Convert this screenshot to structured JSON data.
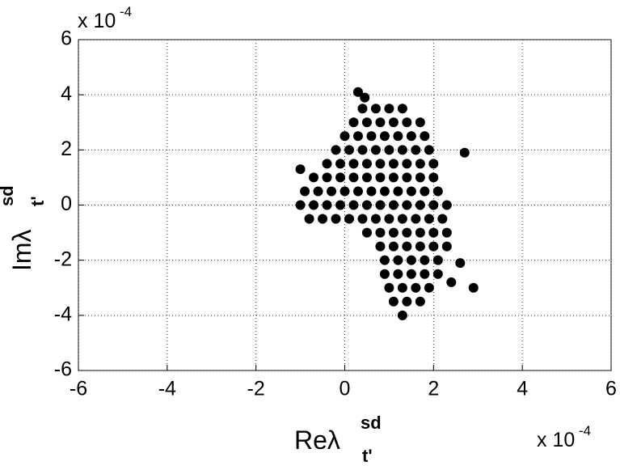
{
  "chart_data": {
    "type": "scatter",
    "xlabel": "Reλ",
    "xlabel_sub": "t'",
    "xlabel_sup": "sd",
    "ylabel": "Imλ",
    "ylabel_sub": "t'",
    "ylabel_sup": "sd",
    "x_multiplier": "x 10",
    "x_multiplier_exp": "-4",
    "y_multiplier": "x 10",
    "y_multiplier_exp": "-4",
    "xlim": [
      -6,
      6
    ],
    "ylim": [
      -6,
      6
    ],
    "xticks": [
      -6,
      -4,
      -2,
      0,
      2,
      4,
      6
    ],
    "yticks": [
      -6,
      -4,
      -2,
      0,
      2,
      4,
      6
    ],
    "grid": true,
    "series": [
      {
        "color": "#000000",
        "x": [
          0.3,
          0.45,
          0.4,
          0.7,
          1.0,
          1.3,
          0.2,
          0.5,
          0.8,
          1.1,
          1.4,
          1.7,
          0.0,
          0.3,
          0.6,
          0.9,
          1.2,
          1.5,
          1.8,
          -0.2,
          0.1,
          0.4,
          0.7,
          1.0,
          1.3,
          1.6,
          1.9,
          -0.4,
          -0.1,
          0.2,
          0.5,
          0.8,
          1.1,
          1.4,
          1.7,
          2.0,
          -0.7,
          -0.4,
          -0.1,
          0.2,
          0.5,
          0.8,
          1.1,
          1.4,
          1.7,
          2.0,
          -0.9,
          -0.6,
          -0.3,
          0.0,
          0.3,
          0.6,
          0.9,
          1.2,
          1.5,
          1.8,
          2.1,
          -1.0,
          -0.7,
          -0.4,
          -0.1,
          0.2,
          0.5,
          0.8,
          1.1,
          1.4,
          1.7,
          2.0,
          2.3,
          -0.8,
          -0.5,
          -0.2,
          0.1,
          0.4,
          0.7,
          1.0,
          1.3,
          1.6,
          1.9,
          2.2,
          0.5,
          0.8,
          1.1,
          1.4,
          1.7,
          2.0,
          2.3,
          0.8,
          1.1,
          1.4,
          1.7,
          2.0,
          2.3,
          0.9,
          1.2,
          1.5,
          1.8,
          2.1,
          0.9,
          1.2,
          1.5,
          1.8,
          2.1,
          1.0,
          1.3,
          1.6,
          1.9,
          1.1,
          1.4,
          1.7,
          1.3,
          2.9,
          2.7,
          -1.0,
          2.6,
          2.4
        ],
        "y": [
          4.1,
          3.9,
          3.5,
          3.5,
          3.5,
          3.5,
          3.0,
          3.0,
          3.0,
          3.0,
          3.0,
          3.0,
          2.5,
          2.5,
          2.5,
          2.5,
          2.5,
          2.5,
          2.5,
          2.0,
          2.0,
          2.0,
          2.0,
          2.0,
          2.0,
          2.0,
          2.0,
          1.5,
          1.5,
          1.5,
          1.5,
          1.5,
          1.5,
          1.5,
          1.5,
          1.5,
          1.0,
          1.0,
          1.0,
          1.0,
          1.0,
          1.0,
          1.0,
          1.0,
          1.0,
          1.0,
          0.5,
          0.5,
          0.5,
          0.5,
          0.5,
          0.5,
          0.5,
          0.5,
          0.5,
          0.5,
          0.5,
          0,
          0,
          0,
          0,
          0,
          0,
          0,
          0,
          0,
          0,
          0,
          0,
          -0.5,
          -0.5,
          -0.5,
          -0.5,
          -0.5,
          -0.5,
          -0.5,
          -0.5,
          -0.5,
          -0.5,
          -0.5,
          -1.0,
          -1.0,
          -1.0,
          -1.0,
          -1.0,
          -1.0,
          -1.0,
          -1.5,
          -1.5,
          -1.5,
          -1.5,
          -1.5,
          -1.5,
          -2.0,
          -2.0,
          -2.0,
          -2.0,
          -2.0,
          -2.5,
          -2.5,
          -2.5,
          -2.5,
          -2.5,
          -3.0,
          -3.0,
          -3.0,
          -3.0,
          -3.5,
          -3.5,
          -3.5,
          -4.0,
          -3.0,
          1.9,
          1.3,
          -2.1,
          -2.8
        ]
      }
    ]
  }
}
